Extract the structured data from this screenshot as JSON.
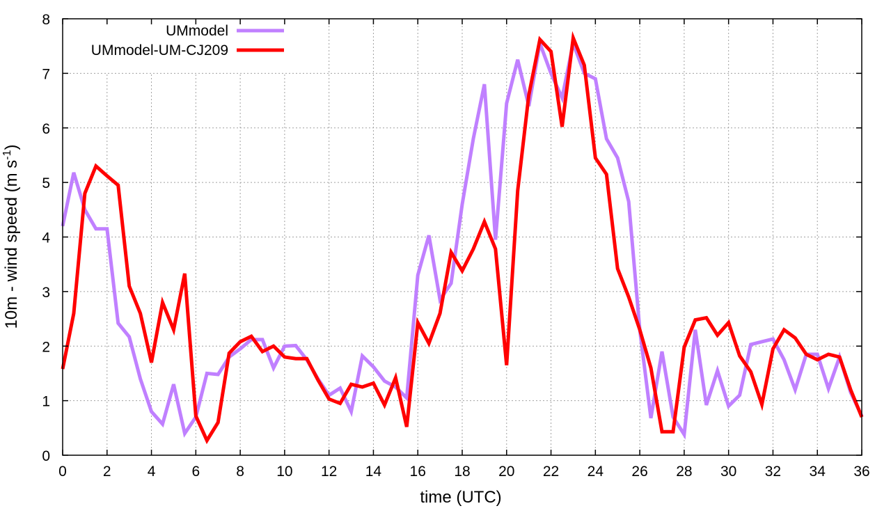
{
  "chart_data": {
    "type": "line",
    "title": "",
    "xlabel": "time (UTC)",
    "ylabel": {
      "main": "10m - wind speed  (m s",
      "sup": "-1",
      "close": ")"
    },
    "xlim": [
      0,
      36
    ],
    "ylim": [
      0,
      8
    ],
    "xticks": [
      0,
      2,
      4,
      6,
      8,
      10,
      12,
      14,
      16,
      18,
      20,
      22,
      24,
      26,
      28,
      30,
      32,
      34,
      36
    ],
    "yticks": [
      0,
      1,
      2,
      3,
      4,
      5,
      6,
      7,
      8
    ],
    "grid": true,
    "legend_position": "top-left",
    "x_step": 0.5,
    "series": [
      {
        "name": "UMmodel",
        "color": "#c080ff",
        "values": [
          4.2,
          5.18,
          4.5,
          4.15,
          4.15,
          2.42,
          2.17,
          1.4,
          0.8,
          0.57,
          1.3,
          0.4,
          0.7,
          1.5,
          1.48,
          1.8,
          1.95,
          2.12,
          2.12,
          1.6,
          2.0,
          2.01,
          1.75,
          1.4,
          1.1,
          1.23,
          0.8,
          1.82,
          1.62,
          1.36,
          1.25,
          1.05,
          3.3,
          4.03,
          2.85,
          3.15,
          4.6,
          5.8,
          6.8,
          3.95,
          6.45,
          7.25,
          6.4,
          7.55,
          7.0,
          6.55,
          7.55,
          7.0,
          6.9,
          5.8,
          5.45,
          4.65,
          2.3,
          0.68,
          1.9,
          0.7,
          0.38,
          2.3,
          0.92,
          1.55,
          0.9,
          1.1,
          2.03,
          2.08,
          2.13,
          1.75,
          1.2,
          1.85,
          1.85,
          1.22,
          1.8,
          1.15,
          0.72
        ]
      },
      {
        "name": "UMmodel-UM-CJ209",
        "color": "#ff0000",
        "values": [
          1.58,
          2.6,
          4.8,
          5.3,
          5.12,
          4.95,
          3.1,
          2.6,
          1.7,
          2.8,
          2.3,
          3.33,
          0.72,
          0.27,
          0.6,
          1.87,
          2.08,
          2.18,
          1.9,
          2.0,
          1.8,
          1.77,
          1.77,
          1.38,
          1.03,
          0.95,
          1.3,
          1.25,
          1.32,
          0.92,
          1.42,
          0.52,
          2.43,
          2.05,
          2.6,
          3.72,
          3.38,
          3.78,
          4.28,
          3.78,
          1.65,
          4.85,
          6.6,
          7.62,
          7.4,
          6.02,
          7.65,
          7.15,
          5.45,
          5.15,
          3.42,
          2.9,
          2.3,
          1.6,
          0.43,
          0.43,
          1.98,
          2.48,
          2.52,
          2.2,
          2.43,
          1.82,
          1.53,
          0.93,
          1.95,
          2.3,
          2.15,
          1.85,
          1.75,
          1.85,
          1.8,
          1.2,
          0.7
        ]
      }
    ]
  }
}
